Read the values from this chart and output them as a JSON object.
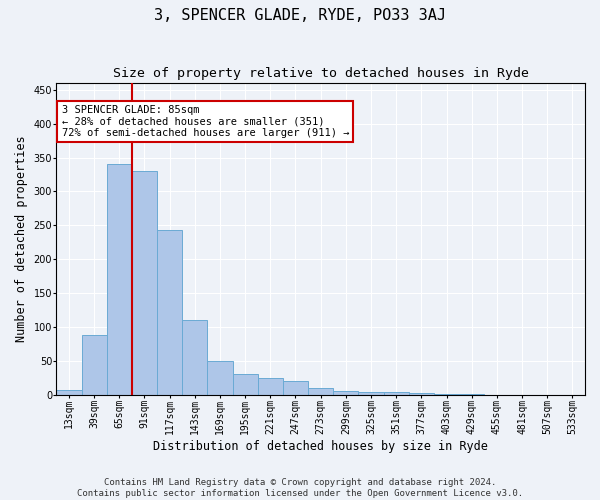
{
  "title": "3, SPENCER GLADE, RYDE, PO33 3AJ",
  "subtitle": "Size of property relative to detached houses in Ryde",
  "xlabel": "Distribution of detached houses by size in Ryde",
  "ylabel": "Number of detached properties",
  "footer_line1": "Contains HM Land Registry data © Crown copyright and database right 2024.",
  "footer_line2": "Contains public sector information licensed under the Open Government Licence v3.0.",
  "annotation_line1": "3 SPENCER GLADE: 85sqm",
  "annotation_line2": "← 28% of detached houses are smaller (351)",
  "annotation_line3": "72% of semi-detached houses are larger (911) →",
  "bar_color": "#aec6e8",
  "bar_edge_color": "#6aaad4",
  "vline_color": "#cc0000",
  "vline_x_index": 3,
  "categories": [
    "13sqm",
    "39sqm",
    "65sqm",
    "91sqm",
    "117sqm",
    "143sqm",
    "169sqm",
    "195sqm",
    "221sqm",
    "247sqm",
    "273sqm",
    "299sqm",
    "325sqm",
    "351sqm",
    "377sqm",
    "403sqm",
    "429sqm",
    "455sqm",
    "481sqm",
    "507sqm",
    "533sqm"
  ],
  "values": [
    6,
    88,
    340,
    330,
    243,
    110,
    50,
    30,
    25,
    20,
    9,
    5,
    4,
    3,
    2,
    1,
    1,
    0,
    0,
    0,
    0
  ],
  "ylim": [
    0,
    460
  ],
  "yticks": [
    0,
    50,
    100,
    150,
    200,
    250,
    300,
    350,
    400,
    450
  ],
  "background_color": "#eef2f8",
  "plot_bg_color": "#eef2f8",
  "grid_color": "#ffffff",
  "annotation_box_facecolor": "#ffffff",
  "annotation_box_edgecolor": "#cc0000",
  "title_fontsize": 11,
  "subtitle_fontsize": 9.5,
  "tick_fontsize": 7,
  "ylabel_fontsize": 8.5,
  "xlabel_fontsize": 8.5,
  "annotation_fontsize": 7.5,
  "footer_fontsize": 6.5
}
